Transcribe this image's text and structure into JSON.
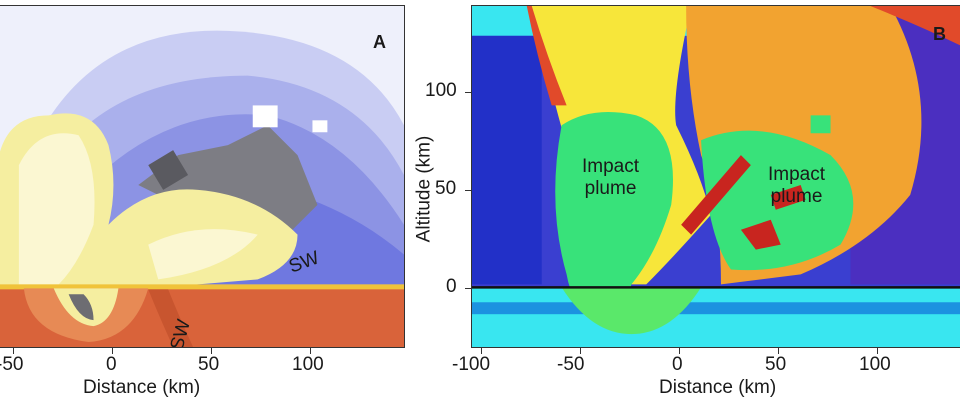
{
  "panel_a": {
    "label": "A",
    "annotations": {
      "sw_upper": "SW",
      "sw_lower": "SW"
    },
    "x_ticks": [
      "-50",
      "0",
      "50",
      "100"
    ],
    "x_axis_title": "Distance (km)"
  },
  "panel_b": {
    "label": "B",
    "annotations": {
      "plume_left_1": "Impact",
      "plume_left_2": "plume",
      "plume_right_1": "Impact",
      "plume_right_2": "plume"
    },
    "x_ticks": [
      "-100",
      "-50",
      "0",
      "50",
      "100"
    ],
    "y_ticks": [
      "100",
      "50",
      "0"
    ],
    "x_axis_title": "Distance (km)",
    "y_axis_title": "Altitude (km)"
  },
  "colors": {
    "target_rock": "#d9633a",
    "plume_yellow": "#f5eea0",
    "atmosphere_blue": "#6f78e0",
    "upper_plume_yellow": "#f7e63a",
    "upper_plume_orange": "#f2a330",
    "plume_green": "#38e27a",
    "ground_cyan": "#39e6f0",
    "background_violet": "#3a3fd0"
  }
}
